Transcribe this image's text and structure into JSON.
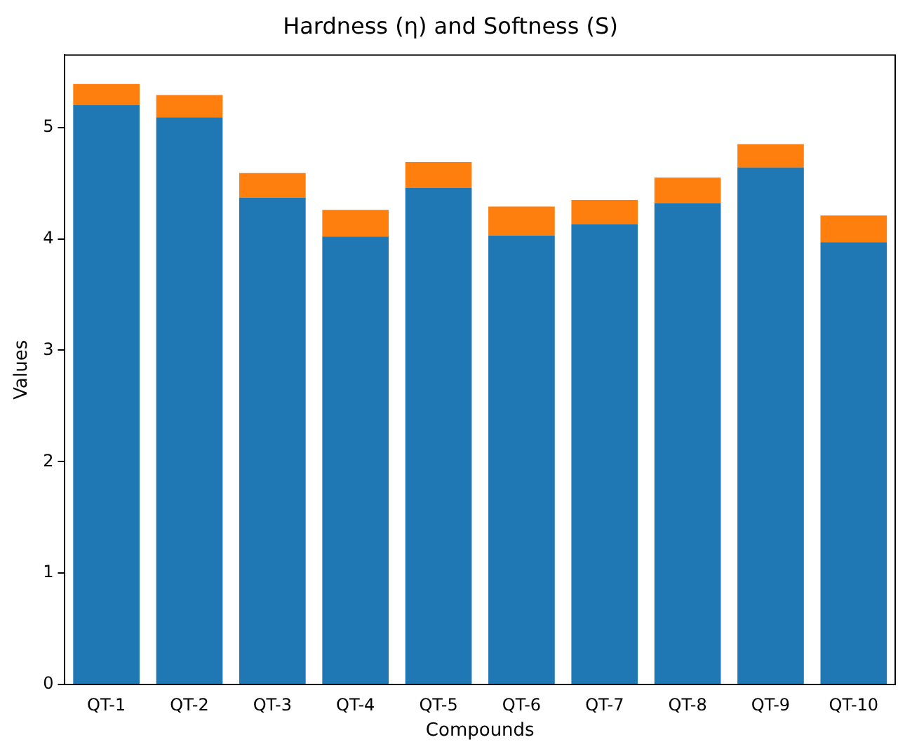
{
  "chart_data": {
    "type": "bar",
    "title": "Hardness (η) and Softness (S)",
    "xlabel": "Compounds",
    "ylabel": "Values",
    "categories": [
      "QT-1",
      "QT-2",
      "QT-3",
      "QT-4",
      "QT-5",
      "QT-6",
      "QT-7",
      "QT-8",
      "QT-9",
      "QT-10"
    ],
    "stacked": true,
    "series": [
      {
        "color": "#1f77b4",
        "values": [
          5.2,
          5.09,
          4.37,
          4.02,
          4.46,
          4.03,
          4.13,
          4.32,
          4.64,
          3.97
        ]
      },
      {
        "color": "#ff7f0e",
        "values": [
          0.19,
          0.2,
          0.22,
          0.24,
          0.23,
          0.26,
          0.22,
          0.23,
          0.21,
          0.24
        ]
      }
    ],
    "ylim": [
      0,
      5.65
    ],
    "yticks": [
      0,
      1,
      2,
      3,
      4,
      5
    ],
    "grid": false,
    "legend": false
  }
}
